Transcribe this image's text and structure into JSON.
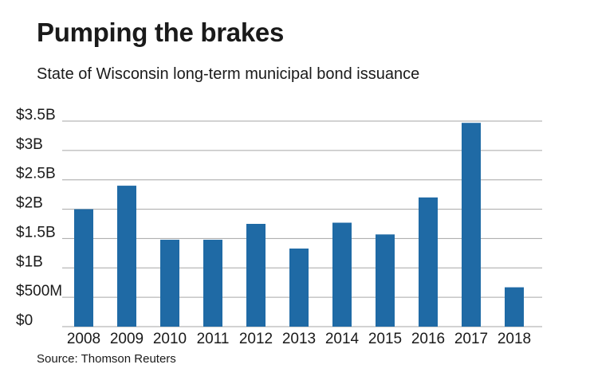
{
  "title": "Pumping the brakes",
  "subtitle": "State of Wisconsin long-term municipal bond issuance",
  "source": "Source: Thomson Reuters",
  "chart_data": {
    "type": "bar",
    "categories": [
      "2008",
      "2009",
      "2010",
      "2011",
      "2012",
      "2013",
      "2014",
      "2015",
      "2016",
      "2017",
      "2018"
    ],
    "values": [
      2.0,
      2.4,
      1.48,
      1.48,
      1.75,
      1.33,
      1.77,
      1.57,
      2.2,
      3.47,
      0.67
    ],
    "unit": "billion USD",
    "yticks": [
      0,
      0.5,
      1,
      1.5,
      2,
      2.5,
      3,
      3.5
    ],
    "ytick_labels": [
      "$0",
      "$500M",
      "$1B",
      "$1.5B",
      "$2B",
      "$2.5B",
      "$3B",
      "$3.5B"
    ],
    "ylim": [
      0,
      3.5
    ],
    "grid": true,
    "bar_color": "#1f6aa5",
    "grid_color": "#a6a6a6"
  }
}
